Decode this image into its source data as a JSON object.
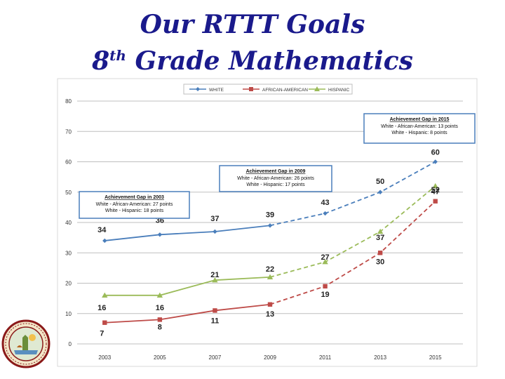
{
  "title": {
    "line1": "Our RTTT Goals",
    "line2_prefix": "8",
    "line2_sup": "th",
    "line2_rest": " Grade Mathematics"
  },
  "chart_data": {
    "type": "line",
    "title": "",
    "xlabel": "",
    "ylabel": "",
    "categories": [
      "2003",
      "2005",
      "2007",
      "2009",
      "2011",
      "2013",
      "2015"
    ],
    "ylim": [
      0,
      80
    ],
    "yticks": [
      "0",
      "10",
      "20",
      "30",
      "40",
      "50",
      "60",
      "70",
      "80"
    ],
    "grid": true,
    "legend_position": "top-center",
    "series": [
      {
        "name": "WHITE",
        "color": "#4a7ebb",
        "marker": "diamond",
        "values": [
          34,
          36,
          37,
          39,
          43,
          50,
          60
        ],
        "labels": [
          "34",
          "36",
          "37",
          "39",
          "43",
          "50",
          "60"
        ]
      },
      {
        "name": "AFRICAN-AMERICAN",
        "color": "#be4b48",
        "marker": "square",
        "values": [
          7,
          8,
          11,
          13,
          19,
          30,
          47
        ],
        "labels": [
          "7",
          "8",
          "11",
          "13",
          "19",
          "30",
          "47"
        ]
      },
      {
        "name": "HISPANIC",
        "color": "#9bbb59",
        "marker": "triangle",
        "values": [
          16,
          16,
          21,
          22,
          27,
          37,
          52
        ],
        "labels": [
          "16",
          "16",
          "21",
          "22",
          "27",
          "37",
          "52"
        ]
      }
    ],
    "annotations": [
      {
        "title": "Achievement Gap in 2003",
        "lines": [
          "White - African-American: 27 points",
          "White - Hispanic: 18 points"
        ]
      },
      {
        "title": "Achievement Gap in 2009",
        "lines": [
          "White - African-American: 26 points",
          "White - Hispanic: 17 points"
        ]
      },
      {
        "title": "Achievement Gap in 2015",
        "lines": [
          "White - African-American: 13 points",
          "White - Hispanic: 8 points"
        ]
      }
    ]
  },
  "seal": {
    "name": "state-seal"
  }
}
